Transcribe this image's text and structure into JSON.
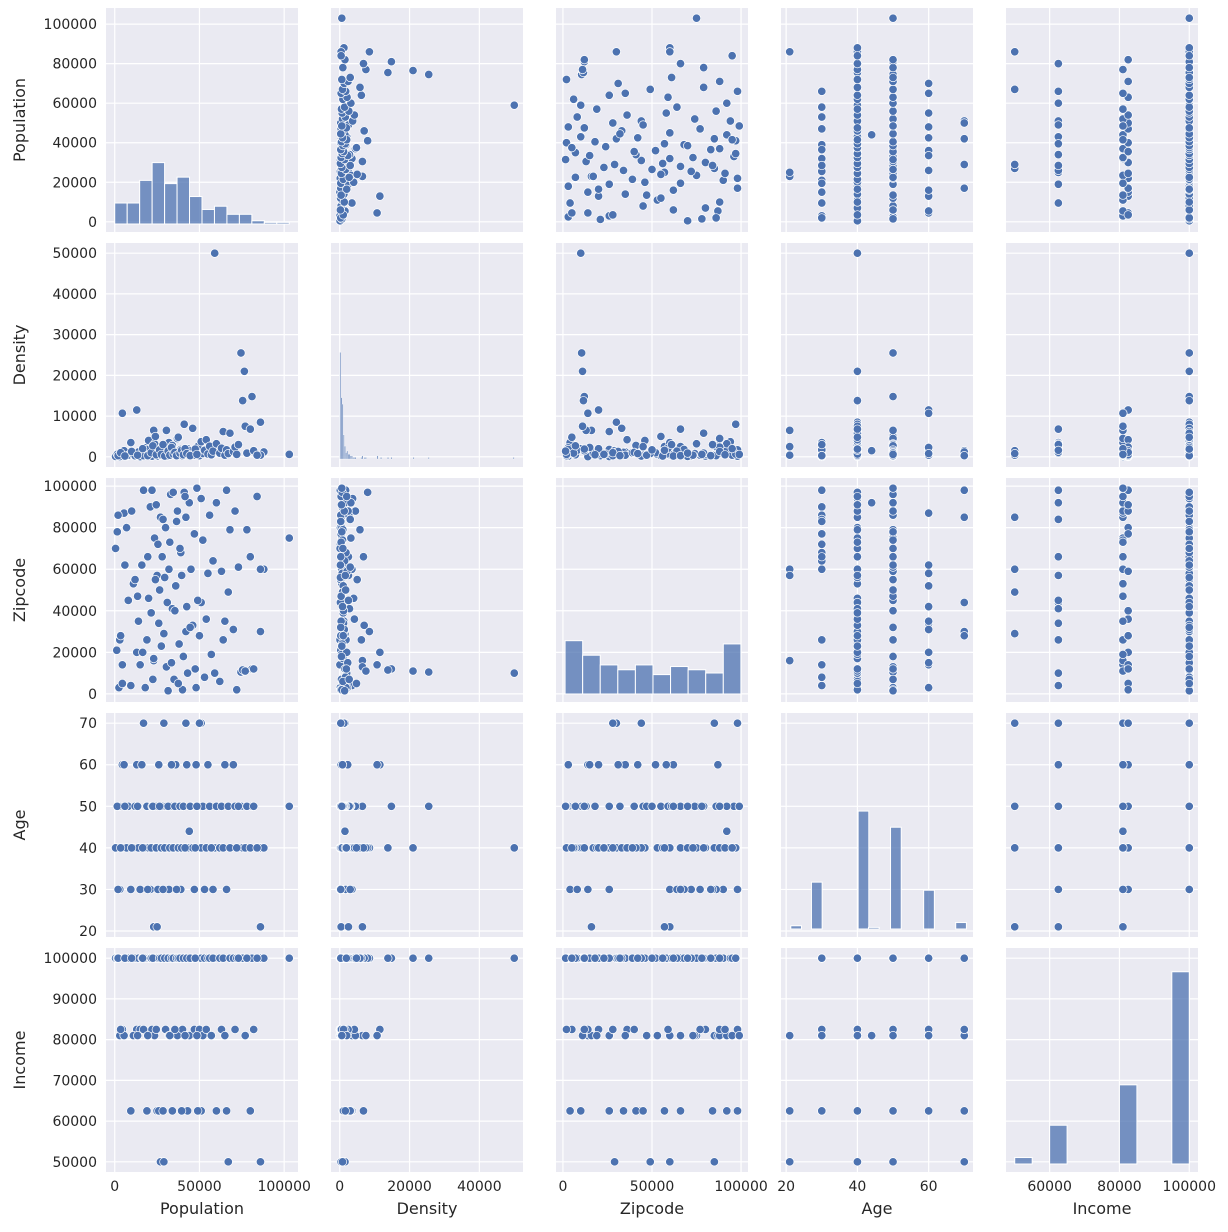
{
  "chart_data": {
    "type": "scatter",
    "variables": [
      "Population",
      "Density",
      "Zipcode",
      "Age",
      "Income"
    ],
    "limits": {
      "Population": [
        -5150,
        108150
      ],
      "Density": [
        -2500,
        52500
      ],
      "Zipcode": [
        -3900,
        103900
      ],
      "Age": [
        18.55,
        72.45
      ],
      "Income": [
        47500,
        102500
      ]
    },
    "x_ticks": {
      "Population": [
        0,
        50000,
        100000
      ],
      "Density": [
        0,
        20000,
        40000
      ],
      "Zipcode": [
        0,
        50000,
        100000
      ],
      "Age": [
        20,
        40,
        60
      ],
      "Income": [
        60000,
        80000,
        100000
      ]
    },
    "y_ticks": {
      "Population": [
        0,
        20000,
        40000,
        60000,
        80000,
        100000
      ],
      "Density": [
        0,
        10000,
        20000,
        30000,
        40000,
        50000
      ],
      "Zipcode": [
        0,
        20000,
        40000,
        60000,
        80000,
        100000
      ],
      "Age": [
        20,
        30,
        40,
        50,
        60,
        70
      ],
      "Income": [
        50000,
        60000,
        70000,
        80000,
        90000,
        100000
      ]
    },
    "grid": true,
    "point_color": "#4c72b0",
    "background_color": "#eaeaf2",
    "diagonal_histograms": {
      "Population": {
        "start": 0,
        "bin_width": 7357,
        "counts": [
          13,
          13,
          27,
          38,
          25,
          29,
          17,
          9,
          11,
          6,
          6,
          2,
          1,
          1
        ]
      },
      "Density": {
        "bin_width": 333,
        "bins": [
          [
            0,
            66
          ],
          [
            333,
            38
          ],
          [
            667,
            34
          ],
          [
            1000,
            15
          ],
          [
            1333,
            8
          ],
          [
            1667,
            4
          ],
          [
            2000,
            5
          ],
          [
            2333,
            3
          ],
          [
            2667,
            3
          ],
          [
            3000,
            2
          ],
          [
            3333,
            2
          ],
          [
            3667,
            1
          ],
          [
            4000,
            1
          ],
          [
            4333,
            1
          ],
          [
            6000,
            1
          ],
          [
            6333,
            2
          ],
          [
            7000,
            1
          ],
          [
            7333,
            1
          ],
          [
            10667,
            2
          ],
          [
            11667,
            1
          ],
          [
            13667,
            1
          ],
          [
            14667,
            1
          ],
          [
            21000,
            1
          ],
          [
            25333,
            1
          ],
          [
            49667,
            1
          ]
        ]
      },
      "Zipcode": {
        "start": 1200,
        "bin_width": 9870,
        "counts": [
          33,
          24,
          18,
          15,
          18,
          12,
          17,
          15,
          13,
          31
        ]
      },
      "Age": {
        "bin_width": 3.0,
        "bins": [
          [
            21.3,
            2
          ],
          [
            27.1,
            29
          ],
          [
            40.2,
            73
          ],
          [
            43.1,
            1
          ],
          [
            49.3,
            63
          ],
          [
            58.6,
            24
          ],
          [
            67.6,
            4
          ]
        ]
      },
      "Income": {
        "start": 50000,
        "bin_width": 5000,
        "counts": [
          4,
          0,
          24,
          0,
          0,
          0,
          49,
          0,
          0,
          119
        ]
      }
    },
    "rows_columns": [
      "Population",
      "Density",
      "Zipcode",
      "Age",
      "Income"
    ],
    "rows": [
      [
        59000,
        50000,
        10000,
        40,
        100000
      ],
      [
        74500,
        25500,
        10500,
        50,
        100000
      ],
      [
        76500,
        21000,
        11000,
        40,
        100000
      ],
      [
        81000,
        14800,
        12000,
        50,
        100000
      ],
      [
        75500,
        13800,
        11500,
        40,
        100000
      ],
      [
        13000,
        11500,
        20000,
        60,
        82500
      ],
      [
        4500,
        10700,
        14000,
        60,
        81000
      ],
      [
        86000,
        8500,
        30000,
        40,
        100000
      ],
      [
        103000,
        600,
        75000,
        50,
        100000
      ],
      [
        88000,
        1200,
        60000,
        40,
        100000
      ],
      [
        86000,
        400,
        60000,
        21,
        50000
      ],
      [
        23000,
        6500,
        16000,
        21,
        81000
      ],
      [
        25000,
        2500,
        57000,
        21,
        62500
      ],
      [
        51000,
        900,
        44000,
        70,
        62500
      ],
      [
        42000,
        500,
        85000,
        70,
        81000
      ],
      [
        1200,
        300,
        21000,
        40,
        100000
      ],
      [
        2500,
        150,
        3000,
        50,
        100000
      ],
      [
        3000,
        80,
        26000,
        30,
        81000
      ],
      [
        4500,
        900,
        5000,
        40,
        82500
      ],
      [
        5500,
        1500,
        87000,
        60,
        81000
      ],
      [
        7000,
        200,
        80000,
        40,
        100000
      ],
      [
        8000,
        400,
        45000,
        50,
        100000
      ],
      [
        9500,
        3500,
        4000,
        30,
        62500
      ],
      [
        11000,
        600,
        53000,
        40,
        81000
      ],
      [
        12000,
        250,
        55000,
        50,
        100000
      ],
      [
        14000,
        1200,
        35000,
        40,
        100000
      ],
      [
        15000,
        50,
        14000,
        30,
        82500
      ],
      [
        16000,
        700,
        62000,
        60,
        100000
      ],
      [
        17000,
        300,
        98000,
        70,
        82500
      ],
      [
        18000,
        2200,
        3000,
        40,
        100000
      ],
      [
        19000,
        1800,
        26000,
        50,
        62500
      ],
      [
        20000,
        4000,
        46000,
        40,
        100000
      ],
      [
        21000,
        700,
        90000,
        30,
        100000
      ],
      [
        22000,
        150,
        98000,
        50,
        82500
      ],
      [
        23000,
        900,
        17000,
        40,
        100000
      ],
      [
        23500,
        3200,
        75000,
        40,
        81000
      ],
      [
        24000,
        5000,
        55000,
        50,
        100000
      ],
      [
        25500,
        200,
        72000,
        30,
        100000
      ],
      [
        26000,
        1100,
        34000,
        60,
        62500
      ],
      [
        27000,
        400,
        85000,
        40,
        50000
      ],
      [
        28000,
        2500,
        66000,
        50,
        100000
      ],
      [
        29000,
        1500,
        29000,
        70,
        50000
      ],
      [
        30000,
        600,
        80000,
        40,
        82500
      ],
      [
        30500,
        6500,
        13000,
        50,
        100000
      ],
      [
        31000,
        200,
        44000,
        40,
        100000
      ],
      [
        32000,
        3500,
        60000,
        30,
        81000
      ],
      [
        33000,
        800,
        96000,
        50,
        100000
      ],
      [
        34000,
        2800,
        41000,
        40,
        62500
      ],
      [
        35000,
        500,
        7000,
        40,
        100000
      ],
      [
        36000,
        1000,
        52000,
        60,
        100000
      ],
      [
        37000,
        4500,
        88000,
        50,
        81000
      ],
      [
        38000,
        700,
        24000,
        40,
        100000
      ],
      [
        39000,
        1800,
        68000,
        30,
        100000
      ],
      [
        40000,
        300,
        2000,
        50,
        82500
      ],
      [
        41000,
        8000,
        97000,
        40,
        100000
      ],
      [
        42000,
        1200,
        30000,
        70,
        100000
      ],
      [
        43000,
        2000,
        10000,
        40,
        62500
      ],
      [
        44000,
        1500,
        92000,
        44,
        81000
      ],
      [
        45000,
        600,
        60000,
        50,
        100000
      ],
      [
        46000,
        7000,
        33000,
        40,
        100000
      ],
      [
        47000,
        400,
        77000,
        30,
        82500
      ],
      [
        48000,
        1800,
        3000,
        60,
        100000
      ],
      [
        49000,
        2500,
        45000,
        50,
        62500
      ],
      [
        50000,
        300,
        28000,
        70,
        82500
      ],
      [
        51000,
        3700,
        94000,
        40,
        100000
      ],
      [
        52000,
        800,
        74000,
        50,
        81000
      ],
      [
        53000,
        1600,
        8000,
        30,
        100000
      ],
      [
        54000,
        4200,
        36000,
        40,
        82500
      ],
      [
        55000,
        700,
        58000,
        60,
        100000
      ],
      [
        56000,
        2600,
        86000,
        50,
        100000
      ],
      [
        57000,
        500,
        19000,
        40,
        81000
      ],
      [
        58000,
        1400,
        64000,
        30,
        100000
      ],
      [
        60000,
        3200,
        92000,
        50,
        62500
      ],
      [
        62000,
        900,
        6000,
        40,
        100000
      ],
      [
        63000,
        2100,
        59000,
        50,
        82500
      ],
      [
        64000,
        6200,
        26000,
        40,
        100000
      ],
      [
        65000,
        400,
        35000,
        60,
        81000
      ],
      [
        66000,
        1700,
        98000,
        30,
        62500
      ],
      [
        67000,
        800,
        49000,
        50,
        50000
      ],
      [
        68000,
        5800,
        79000,
        40,
        100000
      ],
      [
        70000,
        1300,
        31000,
        60,
        100000
      ],
      [
        71000,
        2400,
        88000,
        50,
        82500
      ],
      [
        72000,
        600,
        2000,
        40,
        100000
      ],
      [
        73000,
        3000,
        61000,
        50,
        100000
      ],
      [
        77000,
        7500,
        11000,
        40,
        81000
      ],
      [
        78000,
        900,
        79000,
        50,
        100000
      ],
      [
        80000,
        6800,
        66000,
        40,
        62500
      ],
      [
        82000,
        1500,
        12000,
        50,
        82500
      ],
      [
        84000,
        400,
        95000,
        40,
        100000
      ],
      [
        500,
        100,
        70000,
        40,
        100000
      ],
      [
        1500,
        600,
        78000,
        50,
        100000
      ],
      [
        2000,
        300,
        86000,
        30,
        100000
      ],
      [
        3500,
        1000,
        28000,
        40,
        82500
      ],
      [
        6000,
        200,
        62000,
        50,
        100000
      ],
      [
        10000,
        1300,
        88000,
        40,
        100000
      ],
      [
        13500,
        400,
        47000,
        50,
        81000
      ],
      [
        16500,
        2000,
        20000,
        40,
        100000
      ],
      [
        19500,
        300,
        66000,
        30,
        81000
      ],
      [
        21500,
        1000,
        39000,
        40,
        100000
      ],
      [
        22500,
        2700,
        7000,
        50,
        100000
      ],
      [
        24500,
        500,
        91000,
        40,
        82500
      ],
      [
        26500,
        1700,
        50000,
        50,
        100000
      ],
      [
        27500,
        600,
        23000,
        40,
        100000
      ],
      [
        28500,
        3000,
        84000,
        30,
        62500
      ],
      [
        29500,
        200,
        56000,
        40,
        100000
      ],
      [
        31500,
        1400,
        1500,
        50,
        100000
      ],
      [
        32500,
        400,
        73000,
        40,
        81000
      ],
      [
        33500,
        2300,
        15000,
        60,
        100000
      ],
      [
        34500,
        700,
        97000,
        40,
        100000
      ],
      [
        35500,
        1100,
        40000,
        50,
        82500
      ],
      [
        36500,
        300,
        83000,
        30,
        100000
      ],
      [
        37500,
        4800,
        5000,
        40,
        100000
      ],
      [
        38500,
        900,
        70000,
        50,
        100000
      ],
      [
        39500,
        1600,
        57000,
        40,
        62500
      ],
      [
        40500,
        500,
        18000,
        50,
        100000
      ],
      [
        41500,
        2000,
        95000,
        40,
        81000
      ],
      [
        42500,
        800,
        42000,
        60,
        100000
      ],
      [
        44500,
        300,
        32000,
        50,
        100000
      ],
      [
        47500,
        1900,
        12000,
        40,
        100000
      ],
      [
        48500,
        600,
        99000,
        50,
        81000
      ]
    ]
  },
  "labels": {
    "Population": "Population",
    "Density": "Density",
    "Zipcode": "Zipcode",
    "Age": "Age",
    "Income": "Income"
  }
}
